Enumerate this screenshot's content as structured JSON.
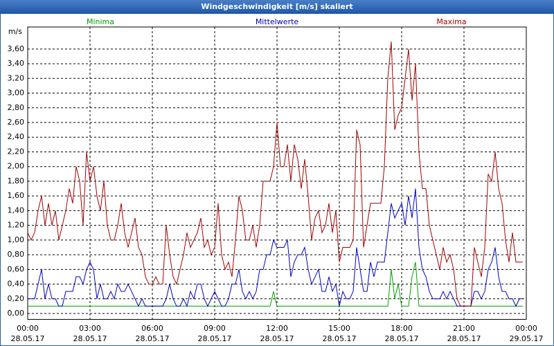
{
  "chart_data": {
    "type": "line",
    "title": "Windgeschwindigkeit [m/s] skaliert",
    "y_label": "m/s",
    "xlim": [
      0,
      1440
    ],
    "ylim": [
      -0.08,
      3.9
    ],
    "grid": true,
    "xticks": [
      {
        "value": 0,
        "label": "00:00"
      },
      {
        "value": 180,
        "label": "03:00"
      },
      {
        "value": 360,
        "label": "06:00"
      },
      {
        "value": 540,
        "label": "09:00"
      },
      {
        "value": 720,
        "label": "12:00"
      },
      {
        "value": 900,
        "label": "15:00"
      },
      {
        "value": 1080,
        "label": "18:00"
      },
      {
        "value": 1260,
        "label": "21:00"
      },
      {
        "value": 1440,
        "label": "00:00"
      }
    ],
    "xtick_dates": [
      "28.05.17",
      "28.05.17",
      "28.05.17",
      "28.05.17",
      "28.05.17",
      "28.05.17",
      "28.05.17",
      "28.05.17",
      "29.05.17"
    ],
    "yticks": [
      {
        "value": 0,
        "label": "0,00"
      },
      {
        "value": 0.2,
        "label": "0,20"
      },
      {
        "value": 0.4,
        "label": "0,40"
      },
      {
        "value": 0.6,
        "label": "0,60"
      },
      {
        "value": 0.8,
        "label": "0,80"
      },
      {
        "value": 1.0,
        "label": "1,00"
      },
      {
        "value": 1.2,
        "label": "1,20"
      },
      {
        "value": 1.4,
        "label": "1,40"
      },
      {
        "value": 1.6,
        "label": "1,60"
      },
      {
        "value": 1.8,
        "label": "1,80"
      },
      {
        "value": 2.0,
        "label": "2,00"
      },
      {
        "value": 2.2,
        "label": "2,20"
      },
      {
        "value": 2.4,
        "label": "2,40"
      },
      {
        "value": 2.6,
        "label": "2,60"
      },
      {
        "value": 2.8,
        "label": "2,80"
      },
      {
        "value": 3.0,
        "label": "3,00"
      },
      {
        "value": 3.2,
        "label": "3,20"
      },
      {
        "value": 3.4,
        "label": "3,40"
      },
      {
        "value": 3.6,
        "label": "3,60"
      }
    ],
    "x": [
      0,
      10,
      20,
      30,
      40,
      50,
      60,
      70,
      80,
      90,
      100,
      110,
      120,
      130,
      140,
      150,
      160,
      170,
      180,
      190,
      200,
      210,
      220,
      230,
      240,
      250,
      260,
      270,
      280,
      290,
      300,
      310,
      320,
      330,
      340,
      350,
      360,
      370,
      380,
      390,
      400,
      410,
      420,
      430,
      440,
      450,
      460,
      470,
      480,
      490,
      500,
      510,
      520,
      530,
      540,
      550,
      560,
      570,
      580,
      590,
      600,
      610,
      620,
      630,
      640,
      650,
      660,
      670,
      680,
      690,
      700,
      710,
      720,
      730,
      740,
      750,
      760,
      770,
      780,
      790,
      800,
      810,
      820,
      830,
      840,
      850,
      860,
      870,
      880,
      890,
      900,
      910,
      920,
      930,
      940,
      950,
      960,
      970,
      980,
      990,
      1000,
      1010,
      1020,
      1030,
      1040,
      1050,
      1060,
      1070,
      1080,
      1090,
      1100,
      1110,
      1120,
      1130,
      1140,
      1150,
      1160,
      1170,
      1180,
      1190,
      1200,
      1210,
      1220,
      1230,
      1240,
      1250,
      1260,
      1270,
      1280,
      1290,
      1300,
      1310,
      1320,
      1330,
      1340,
      1350,
      1360,
      1370,
      1380,
      1390,
      1400,
      1410,
      1420,
      1430
    ],
    "series": [
      {
        "name": "Minima",
        "color": "#00a000",
        "values": [
          0.1,
          0.1,
          0.1,
          0.1,
          0.1,
          0.1,
          0.1,
          0.1,
          0.1,
          0.1,
          0.1,
          0.1,
          0.1,
          0.1,
          0.1,
          0.1,
          0.1,
          0.1,
          0.1,
          0.1,
          0.1,
          0.1,
          0.1,
          0.1,
          0.1,
          0.1,
          0.1,
          0.1,
          0.1,
          0.1,
          0.1,
          0.1,
          0.1,
          0.1,
          0.1,
          0.1,
          0.1,
          0.1,
          0.1,
          0.1,
          0.1,
          0.1,
          0.1,
          0.1,
          0.1,
          0.1,
          0.1,
          0.1,
          0.1,
          0.1,
          0.1,
          0.1,
          0.1,
          0.1,
          0.1,
          0.1,
          0.1,
          0.1,
          0.1,
          0.1,
          0.1,
          0.1,
          0.1,
          0.1,
          0.1,
          0.1,
          0.1,
          0.1,
          0.1,
          0.1,
          0.1,
          0.3,
          0.1,
          0.1,
          0.1,
          0.1,
          0.1,
          0.1,
          0.1,
          0.1,
          0.1,
          0.1,
          0.1,
          0.1,
          0.1,
          0.1,
          0.1,
          0.1,
          0.1,
          0.1,
          0.1,
          0.1,
          0.1,
          0.1,
          0.1,
          0.1,
          0.1,
          0.1,
          0.1,
          0.1,
          0.1,
          0.1,
          0.1,
          0.1,
          0.1,
          0.6,
          0.2,
          0.4,
          0.1,
          0.1,
          0.1,
          0.5,
          0.7,
          0.1,
          0.1,
          0.1,
          0.1,
          0.1,
          0.1,
          0.1,
          0.1,
          0.1,
          0.1,
          0.1,
          0.1,
          0.1,
          0.1,
          0.1,
          0.1,
          0.1,
          0.1,
          0.1,
          0.1,
          0.1,
          0.1,
          0.1,
          0.1,
          0.1,
          0.1,
          0.1,
          0.1,
          0.1,
          0.1,
          0.1
        ]
      },
      {
        "name": "Mittelwerte",
        "color": "#0000c0",
        "values": [
          0.2,
          0.2,
          0.2,
          0.4,
          0.6,
          0.2,
          0.4,
          0.2,
          0.2,
          0.1,
          0.1,
          0.3,
          0.3,
          0.3,
          0.5,
          0.5,
          0.4,
          0.6,
          0.7,
          0.6,
          0.2,
          0.4,
          0.2,
          0.2,
          0.3,
          0.2,
          0.4,
          0.3,
          0.3,
          0.4,
          0.3,
          0.2,
          0.1,
          0.2,
          0.1,
          0.1,
          0.1,
          0.1,
          0.1,
          0.1,
          0.2,
          0.4,
          0.2,
          0.1,
          0.1,
          0.2,
          0.1,
          0.3,
          0.2,
          0.4,
          0.4,
          0.2,
          0.1,
          0.2,
          0.3,
          0.2,
          0.1,
          0.1,
          0.2,
          0.4,
          0.4,
          0.6,
          0.3,
          0.2,
          0.3,
          0.2,
          0.3,
          0.6,
          0.6,
          0.8,
          0.8,
          1.0,
          0.9,
          0.9,
          0.9,
          1.0,
          0.5,
          0.7,
          0.8,
          0.8,
          0.9,
          0.6,
          0.4,
          0.5,
          0.6,
          0.3,
          0.3,
          0.5,
          0.3,
          0.4,
          0.1,
          0.3,
          0.2,
          0.2,
          0.3,
          0.9,
          0.6,
          0.3,
          0.3,
          0.7,
          0.5,
          0.7,
          0.7,
          0.7,
          1.1,
          1.5,
          1.3,
          1.4,
          1.5,
          1.2,
          1.6,
          1.3,
          1.7,
          0.9,
          0.6,
          0.5,
          0.3,
          0.2,
          0.2,
          0.2,
          0.3,
          0.2,
          0.3,
          0.2,
          0.1,
          0.1,
          0.1,
          0.1,
          0.1,
          0.3,
          0.3,
          0.2,
          0.3,
          0.6,
          0.7,
          0.9,
          0.5,
          0.3,
          0.3,
          0.2,
          0.2,
          0.1,
          0.2,
          0.2
        ]
      },
      {
        "name": "Maxima",
        "color": "#a00000",
        "values": [
          1.1,
          1.0,
          1.1,
          1.4,
          1.6,
          1.2,
          1.5,
          1.2,
          1.4,
          1.0,
          1.2,
          1.4,
          1.7,
          1.5,
          2.0,
          1.8,
          1.2,
          2.2,
          1.8,
          2.0,
          1.6,
          1.4,
          1.8,
          1.2,
          1.0,
          1.0,
          1.2,
          1.5,
          1.1,
          0.9,
          1.1,
          1.3,
          0.9,
          0.8,
          0.5,
          0.4,
          0.4,
          0.5,
          0.4,
          0.4,
          1.2,
          0.8,
          0.5,
          0.4,
          0.6,
          0.8,
          1.1,
          0.9,
          1.0,
          1.1,
          1.3,
          0.9,
          1.0,
          0.8,
          0.9,
          1.5,
          0.8,
          0.6,
          0.7,
          0.5,
          1.0,
          1.6,
          1.4,
          1.0,
          1.0,
          1.2,
          0.9,
          1.2,
          1.8,
          1.8,
          1.8,
          2.0,
          2.6,
          2.0,
          2.0,
          2.3,
          1.8,
          2.3,
          2.1,
          1.7,
          2.1,
          1.6,
          1.0,
          1.3,
          1.4,
          1.1,
          1.2,
          1.5,
          1.1,
          1.4,
          0.7,
          0.9,
          0.9,
          0.9,
          1.0,
          2.5,
          2.3,
          0.9,
          1.2,
          1.5,
          1.5,
          1.5,
          1.5,
          2.0,
          3.2,
          3.7,
          2.5,
          2.7,
          2.8,
          3.2,
          3.6,
          2.9,
          3.4,
          2.2,
          1.7,
          1.7,
          1.2,
          1.0,
          0.8,
          0.6,
          0.9,
          0.7,
          0.8,
          0.6,
          0.2,
          0.1,
          0.1,
          0.1,
          0.1,
          0.9,
          0.7,
          0.5,
          0.9,
          1.9,
          1.8,
          2.2,
          1.7,
          1.5,
          1.0,
          0.7,
          1.1,
          0.7,
          0.7,
          0.7
        ]
      }
    ]
  }
}
